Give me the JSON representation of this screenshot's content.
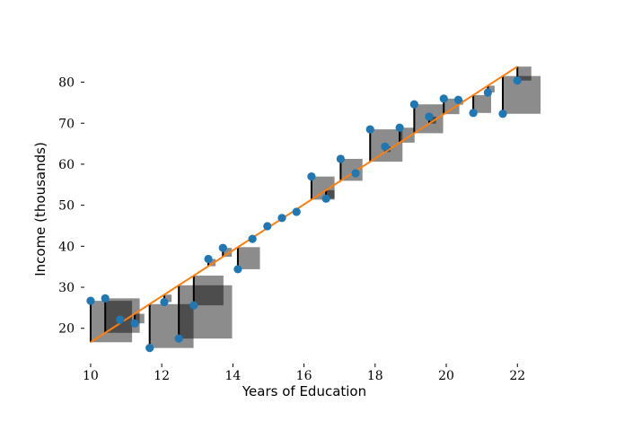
{
  "chart_data": {
    "type": "scatter",
    "title": "",
    "xlabel": "Years of Education",
    "ylabel": "Income (thousands)",
    "xlim": [
      9.85,
      22.6
    ],
    "ylim": [
      12.5,
      88
    ],
    "xticks": [
      10,
      12,
      14,
      16,
      18,
      20,
      22
    ],
    "yticks": [
      20,
      30,
      40,
      50,
      60,
      70,
      80
    ],
    "grid": false,
    "legend": "none",
    "fit_line": {
      "slope": 5.6,
      "intercept": -39.4,
      "x_range": [
        10.0,
        22.0
      ]
    },
    "points": [
      {
        "x": 10.0,
        "y": 26.7
      },
      {
        "x": 10.41,
        "y": 27.3
      },
      {
        "x": 10.83,
        "y": 22.1
      },
      {
        "x": 11.24,
        "y": 21.2
      },
      {
        "x": 11.66,
        "y": 15.2
      },
      {
        "x": 12.07,
        "y": 26.4
      },
      {
        "x": 12.48,
        "y": 17.5
      },
      {
        "x": 12.9,
        "y": 25.6
      },
      {
        "x": 13.31,
        "y": 36.9
      },
      {
        "x": 13.72,
        "y": 39.6
      },
      {
        "x": 14.14,
        "y": 34.4
      },
      {
        "x": 14.55,
        "y": 41.8
      },
      {
        "x": 14.97,
        "y": 44.9
      },
      {
        "x": 15.38,
        "y": 46.9
      },
      {
        "x": 15.79,
        "y": 48.4
      },
      {
        "x": 16.21,
        "y": 57.0
      },
      {
        "x": 16.62,
        "y": 51.6
      },
      {
        "x": 17.03,
        "y": 61.3
      },
      {
        "x": 17.45,
        "y": 57.8
      },
      {
        "x": 17.86,
        "y": 68.5
      },
      {
        "x": 18.28,
        "y": 64.3
      },
      {
        "x": 18.69,
        "y": 68.9
      },
      {
        "x": 19.1,
        "y": 74.6
      },
      {
        "x": 19.52,
        "y": 71.6
      },
      {
        "x": 19.93,
        "y": 76.0
      },
      {
        "x": 20.34,
        "y": 75.7
      },
      {
        "x": 20.76,
        "y": 72.5
      },
      {
        "x": 21.17,
        "y": 77.5
      },
      {
        "x": 21.59,
        "y": 72.3
      },
      {
        "x": 22.0,
        "y": 80.4
      }
    ],
    "colors": {
      "points": "#1f77b4",
      "fit_line": "#ff7f0e",
      "residual_lines": "#000000",
      "squares": "#000000"
    }
  }
}
